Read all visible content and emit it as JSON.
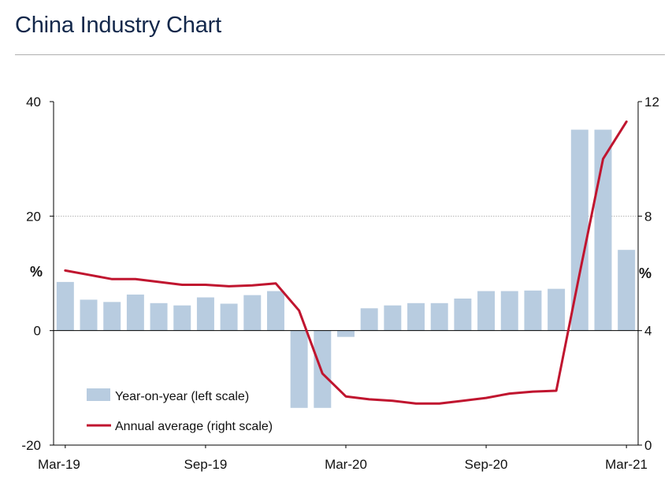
{
  "page": {
    "title": "China Industry Chart"
  },
  "chart_data": {
    "type": "bar+line",
    "title": "China Industry Chart",
    "categories": [
      "Mar-19",
      "Apr-19",
      "May-19",
      "Jun-19",
      "Jul-19",
      "Aug-19",
      "Sep-19",
      "Oct-19",
      "Nov-19",
      "Dec-19",
      "Jan-20",
      "Feb-20",
      "Mar-20",
      "Apr-20",
      "May-20",
      "Jun-20",
      "Jul-20",
      "Aug-20",
      "Sep-20",
      "Oct-20",
      "Nov-20",
      "Dec-20",
      "Jan-21",
      "Feb-21",
      "Mar-21"
    ],
    "x_tick_labels": [
      "Mar-19",
      "Sep-19",
      "Mar-20",
      "Sep-20",
      "Mar-21"
    ],
    "x_tick_categories": [
      "Mar-19",
      "Sep-19",
      "Mar-20",
      "Sep-20",
      "Mar-21"
    ],
    "left_axis": {
      "ylim": [
        -20,
        40
      ],
      "ticks": [
        -20,
        0,
        20,
        40
      ],
      "tick_labels": [
        "-20",
        "0",
        "20",
        "40"
      ],
      "unit_label": "%"
    },
    "right_axis": {
      "ylim": [
        0,
        12
      ],
      "ticks": [
        0,
        4,
        8,
        12
      ],
      "tick_labels": [
        "0",
        "4",
        "8",
        "12"
      ],
      "unit_label": "%"
    },
    "gridlines": [
      20
    ],
    "series": [
      {
        "name": "Year-on-year (left scale)",
        "type": "bar",
        "axis": "left",
        "color": "#b8cce0",
        "values": [
          8.5,
          5.4,
          5.0,
          6.3,
          4.8,
          4.4,
          5.8,
          4.7,
          6.2,
          6.9,
          -13.5,
          -13.5,
          -1.1,
          3.9,
          4.4,
          4.8,
          4.8,
          5.6,
          6.9,
          6.9,
          7.0,
          7.3,
          35.1,
          35.1,
          14.1
        ]
      },
      {
        "name": "Annual average (right scale)",
        "type": "line",
        "axis": "right",
        "color": "#c0152f",
        "values": [
          6.1,
          5.95,
          5.8,
          5.8,
          5.7,
          5.6,
          5.6,
          5.55,
          5.58,
          5.65,
          4.7,
          2.5,
          1.7,
          1.6,
          1.55,
          1.45,
          1.45,
          1.55,
          1.65,
          1.8,
          1.87,
          1.9,
          6.0,
          10.0,
          11.3
        ]
      }
    ],
    "legend": {
      "position": "lower-left",
      "entries": [
        "Year-on-year (left scale)",
        "Annual average (right scale)"
      ]
    }
  }
}
